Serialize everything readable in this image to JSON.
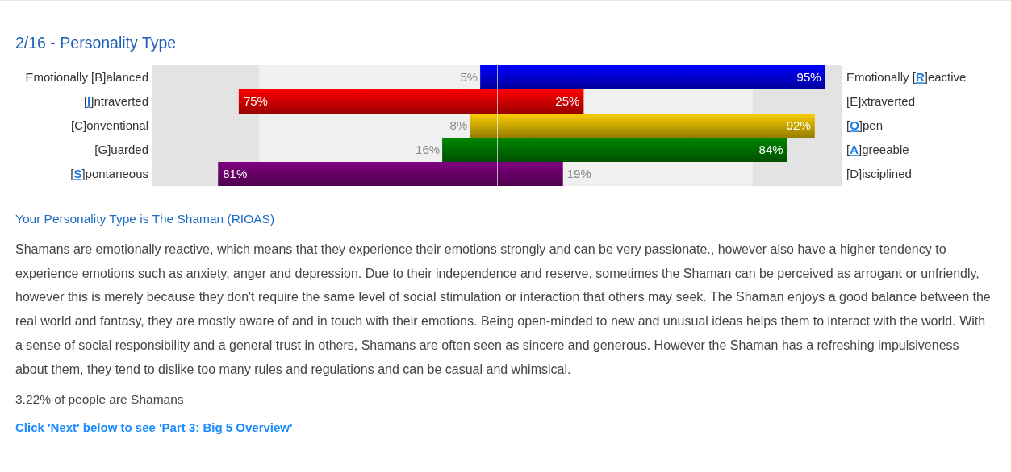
{
  "chart_data": {
    "type": "bar",
    "orientation": "horizontal",
    "stacked": true,
    "title": "2/16 - Personality Type",
    "categories": [
      "Emotionally [B]alanced",
      "[I]ntraverted",
      "[C]onventional",
      "[G]uarded",
      "[S]pontaneous"
    ],
    "y2_categories": [
      "Emotionally [R]eactive",
      "[E]xtraverted",
      "[O]pen",
      "[A]greeable",
      "[D]isciplined"
    ],
    "series": [
      {
        "values": [
          -5,
          -75,
          -8,
          -16,
          -81
        ],
        "colors": [
          "#0000cc",
          "#cc0000",
          "#c8a500",
          "#006b00",
          "#660066"
        ]
      },
      {
        "values": [
          95,
          25,
          92,
          84,
          19
        ],
        "colors": [
          "#0000cc",
          "#cc0000",
          "#c8a500",
          "#006b00",
          "#660066"
        ],
        "value_labels": [
          "95%",
          "25%",
          "92%",
          "84%",
          "19%"
        ]
      }
    ],
    "xlim": [
      -100,
      100
    ],
    "bands": [
      {
        "axis": "x",
        "from": -100,
        "to": -69,
        "color": "#e3e3e3"
      },
      {
        "axis": "x",
        "from": -69,
        "to": 74,
        "color": "#f0f0f0"
      },
      {
        "axis": "x",
        "from": 74,
        "to": 100,
        "color": "#e3e3e3"
      }
    ],
    "ref_lines": [
      {
        "axis": "x",
        "value": 0,
        "color": "#ffffff"
      }
    ],
    "annotations": [
      {
        "text": "5%",
        "x": -5,
        "y": "Emotionally [B]alanced"
      },
      {
        "text": "75%",
        "x": -75,
        "y": "[I]ntraverted"
      },
      {
        "text": "8%",
        "x": -8,
        "y": "[C]onventional"
      },
      {
        "text": "16%",
        "x": -16,
        "y": "[G]uarded"
      },
      {
        "text": "81%",
        "x": -81,
        "y": "[S]pontaneous"
      },
      "Your Personality Type is The Shaman (RIOAS)",
      "Shamans are emotionally reactive, which means that they experience their emotions strongly and can be very passionate., however also have a higher tendency to experience emotions such as anxiety, anger and depression. Due to their independence and reserve, sometimes the Shaman can be perceived as arrogant or unfriendly, however this is merely because they don't require the same level of social stimulation or interaction that others may seek. The Shaman enjoys a good balance between the real world and fantasy, they are mostly aware of and in touch with their emotions. Being open-minded to new and unusual ideas helps them to interact with the world. With a sense of social responsibility and a general trust in others, Shamans are often seen as sincere and generous. However the Shaman has a refreshing impulsiveness about them, they tend to dislike too many rules and regulations and can be casual and whimsical.",
      "3.22% of people are Shamans",
      "Click 'Next' below to see 'Part 3: Big 5 Overview'"
    ]
  }
}
